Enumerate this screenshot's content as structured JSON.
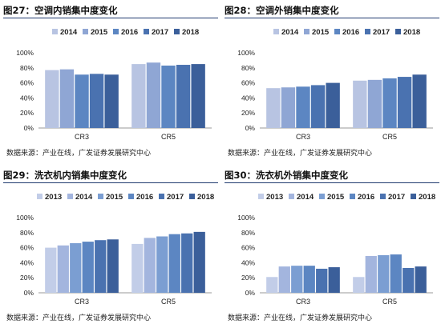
{
  "panels": [
    {
      "title": "图27：空调内销集中度变化",
      "source": "数据来源：产业在线，广发证券发展研究中心"
    },
    {
      "title": "图28：空调外销集中度变化",
      "source": "数据来源：产业在线，广发证券发展研究中心"
    },
    {
      "title": "图29：洗衣机内销集中度变化",
      "source": "数据来源：产业在线，广发证券发展研究中心"
    },
    {
      "title": "图30：洗衣机外销集中度变化",
      "source": "数据来源：产业在线，广发证券发展研究中心"
    }
  ],
  "chart_data": [
    {
      "type": "bar",
      "title": "图27：空调内销集中度变化",
      "categories": [
        "CR3",
        "CR5"
      ],
      "series": [
        {
          "name": "2014",
          "values": [
            77,
            85
          ]
        },
        {
          "name": "2015",
          "values": [
            78,
            87
          ]
        },
        {
          "name": "2016",
          "values": [
            71,
            83
          ]
        },
        {
          "name": "2017",
          "values": [
            72,
            84
          ]
        },
        {
          "name": "2018",
          "values": [
            71,
            85
          ]
        }
      ],
      "ylim": [
        0,
        100
      ],
      "yticks": [
        "0%",
        "20%",
        "40%",
        "60%",
        "80%",
        "100%"
      ],
      "legend": "top",
      "grid": false
    },
    {
      "type": "bar",
      "title": "图28：空调外销集中度变化",
      "categories": [
        "CR3",
        "CR5"
      ],
      "series": [
        {
          "name": "2014",
          "values": [
            53,
            63
          ]
        },
        {
          "name": "2015",
          "values": [
            54,
            64
          ]
        },
        {
          "name": "2016",
          "values": [
            55,
            66
          ]
        },
        {
          "name": "2017",
          "values": [
            57,
            68
          ]
        },
        {
          "name": "2018",
          "values": [
            60,
            71
          ]
        }
      ],
      "ylim": [
        0,
        100
      ],
      "yticks": [
        "0%",
        "20%",
        "40%",
        "60%",
        "80%",
        "100%"
      ],
      "legend": "top",
      "grid": false
    },
    {
      "type": "bar",
      "title": "图29：洗衣机内销集中度变化",
      "categories": [
        "CR3",
        "CR5"
      ],
      "series": [
        {
          "name": "2013",
          "values": [
            60,
            65
          ]
        },
        {
          "name": "2014",
          "values": [
            63,
            73
          ]
        },
        {
          "name": "2015",
          "values": [
            66,
            75
          ]
        },
        {
          "name": "2016",
          "values": [
            68,
            78
          ]
        },
        {
          "name": "2017",
          "values": [
            70,
            79
          ]
        },
        {
          "name": "2018",
          "values": [
            71,
            81
          ]
        }
      ],
      "ylim": [
        0,
        100
      ],
      "yticks": [
        "0%",
        "20%",
        "40%",
        "60%",
        "80%",
        "100%"
      ],
      "legend": "top",
      "grid": false
    },
    {
      "type": "bar",
      "title": "图30：洗衣机外销集中度变化",
      "categories": [
        "CR3",
        "CR5"
      ],
      "series": [
        {
          "name": "2013",
          "values": [
            21,
            21
          ]
        },
        {
          "name": "2014",
          "values": [
            35,
            49
          ]
        },
        {
          "name": "2015",
          "values": [
            36,
            50
          ]
        },
        {
          "name": "2016",
          "values": [
            36,
            51
          ]
        },
        {
          "name": "2017",
          "values": [
            32,
            33
          ]
        },
        {
          "name": "2018",
          "values": [
            34,
            35
          ]
        }
      ],
      "ylim": [
        0,
        100
      ],
      "yticks": [
        "0%",
        "20%",
        "40%",
        "60%",
        "80%",
        "100%"
      ],
      "legend": "top",
      "grid": false
    }
  ],
  "colors": {
    "five_series": [
      "#b8c4e2",
      "#8fa6d4",
      "#5c86c2",
      "#4a72b0",
      "#3b5f9a"
    ],
    "six_series": [
      "#c2cde8",
      "#a3b5de",
      "#7b9ed2",
      "#5c86c2",
      "#4a72b0",
      "#3b5f9a"
    ],
    "title_rule": "#1f3a6e"
  }
}
